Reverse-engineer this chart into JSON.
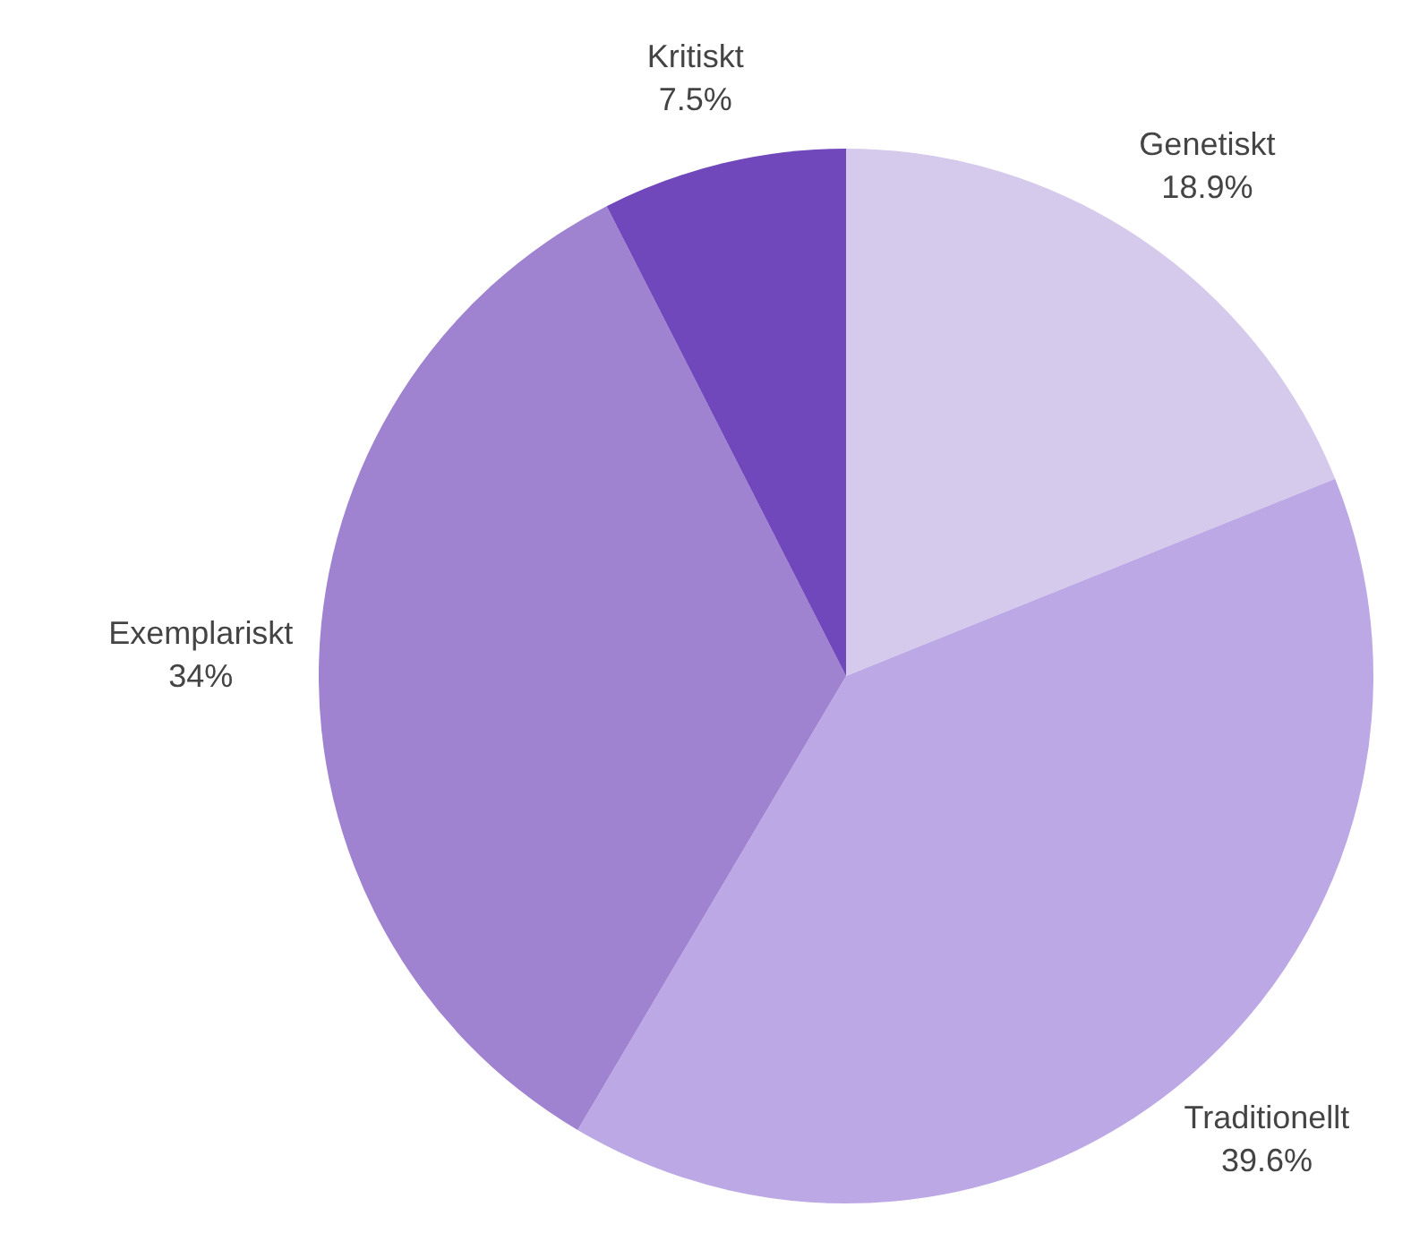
{
  "chart_data": {
    "type": "pie",
    "categories": [
      "Genetiskt",
      "Traditionellt",
      "Exemplariskt",
      "Kritiskt"
    ],
    "values": [
      18.9,
      39.6,
      34,
      7.5
    ],
    "value_labels": [
      "18.9%",
      "39.6%",
      "34%",
      "7.5%"
    ],
    "colors": [
      "#d5c9ec",
      "#bca8e5",
      "#9f82d0",
      "#7048bc"
    ],
    "legend": false
  }
}
